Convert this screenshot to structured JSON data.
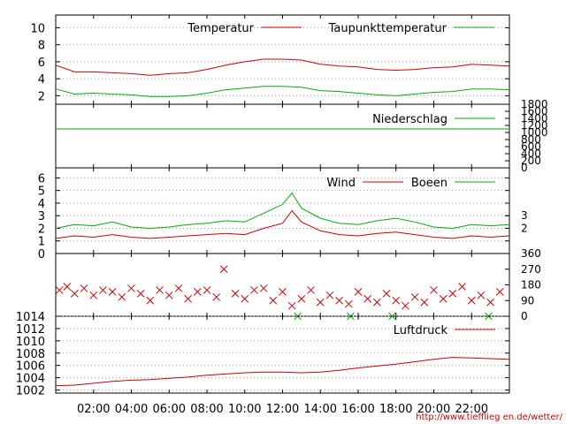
{
  "source_url": "http://www.tiefflieg en.de/wetter/",
  "colors": {
    "red": "#cc0000",
    "green": "#00b000",
    "grid": "#a0a0a0",
    "frame": "#000000"
  },
  "chart_data": {
    "x_ticks": [
      "02:00",
      "04:00",
      "06:00",
      "08:00",
      "10:00",
      "12:00",
      "14:00",
      "16:00",
      "18:00",
      "20:00",
      "22:00"
    ],
    "x_range_hours": [
      0,
      24
    ],
    "panels": [
      {
        "id": "temperature",
        "type": "line",
        "y_ticks": [
          "2",
          "4",
          "6",
          "8",
          "10"
        ],
        "ylim": [
          1,
          11.5
        ],
        "grid": true,
        "legend": [
          "Temperatur",
          "Taupunkttemperatur"
        ],
        "series": [
          {
            "name": "Temperatur",
            "color": "red",
            "x": [
              0,
              1,
              2,
              3,
              4,
              5,
              6,
              7,
              8,
              9,
              10,
              11,
              12,
              13,
              14,
              15,
              16,
              17,
              18,
              19,
              20,
              21,
              22,
              23,
              24
            ],
            "y": [
              5.6,
              4.8,
              4.8,
              4.7,
              4.6,
              4.4,
              4.6,
              4.7,
              5.1,
              5.6,
              6.0,
              6.3,
              6.3,
              6.2,
              5.7,
              5.5,
              5.4,
              5.1,
              5.0,
              5.1,
              5.3,
              5.4,
              5.7,
              5.6,
              5.5
            ]
          },
          {
            "name": "Taupunkttemperatur",
            "color": "green",
            "x": [
              0,
              1,
              2,
              3,
              4,
              5,
              6,
              7,
              8,
              9,
              10,
              11,
              12,
              13,
              14,
              15,
              16,
              17,
              18,
              19,
              20,
              21,
              22,
              23,
              24
            ],
            "y": [
              2.8,
              2.2,
              2.3,
              2.2,
              2.1,
              1.9,
              1.9,
              2.0,
              2.3,
              2.7,
              2.9,
              3.1,
              3.1,
              3.0,
              2.6,
              2.5,
              2.3,
              2.1,
              2.0,
              2.2,
              2.4,
              2.5,
              2.8,
              2.8,
              2.7
            ]
          }
        ]
      },
      {
        "id": "precipitation",
        "type": "line",
        "y_ticks_right": [
          "0",
          "200",
          "400",
          "600",
          "800",
          "1000",
          "1200",
          "1400",
          "1600",
          "1800"
        ],
        "ylim": [
          0,
          1800
        ],
        "grid": false,
        "legend": [
          "Niederschlag"
        ],
        "series": [
          {
            "name": "Niederschlag",
            "color": "green",
            "x": [
              0,
              24
            ],
            "y": [
              1100,
              1100
            ]
          }
        ]
      },
      {
        "id": "wind",
        "type": "line",
        "y_ticks": [
          "0",
          "1",
          "2",
          "3",
          "4",
          "5",
          "6"
        ],
        "y_ticks_right": [
          "2",
          "3"
        ],
        "ylim": [
          0,
          6.8
        ],
        "grid": true,
        "legend": [
          "Wind",
          "Boeen"
        ],
        "series": [
          {
            "name": "Wind",
            "color": "red",
            "x": [
              0,
              1,
              2,
              3,
              4,
              5,
              6,
              7,
              8,
              9,
              10,
              11,
              12,
              12.5,
              13,
              14,
              15,
              16,
              17,
              18,
              19,
              20,
              21,
              22,
              23,
              24
            ],
            "y": [
              1.2,
              1.4,
              1.3,
              1.5,
              1.3,
              1.2,
              1.3,
              1.4,
              1.5,
              1.6,
              1.5,
              2.0,
              2.4,
              3.4,
              2.5,
              1.8,
              1.5,
              1.4,
              1.6,
              1.7,
              1.5,
              1.3,
              1.2,
              1.4,
              1.3,
              1.4
            ]
          },
          {
            "name": "Boeen",
            "color": "green",
            "x": [
              0,
              1,
              2,
              3,
              4,
              5,
              6,
              7,
              8,
              9,
              10,
              11,
              12,
              12.5,
              13,
              14,
              15,
              16,
              17,
              18,
              19,
              20,
              21,
              22,
              23,
              24
            ],
            "y": [
              2.0,
              2.3,
              2.2,
              2.5,
              2.1,
              2.0,
              2.1,
              2.3,
              2.4,
              2.6,
              2.5,
              3.2,
              3.9,
              4.8,
              3.6,
              2.8,
              2.4,
              2.3,
              2.6,
              2.8,
              2.5,
              2.1,
              2.0,
              2.3,
              2.2,
              2.3
            ]
          }
        ]
      },
      {
        "id": "wind_direction",
        "type": "scatter",
        "y_ticks_right": [
          "0",
          "90",
          "180",
          "270",
          "360"
        ],
        "ylim": [
          0,
          360
        ],
        "grid": false,
        "marker": "x",
        "series": [
          {
            "name": "",
            "color": "red",
            "x": [
              0.2,
              0.6,
              1.0,
              1.5,
              2.0,
              2.5,
              3.0,
              3.5,
              4.0,
              4.5,
              5.0,
              5.5,
              6.0,
              6.5,
              7.0,
              7.5,
              8.0,
              8.5,
              8.9,
              9.5,
              10.0,
              10.5,
              11.0,
              11.5,
              12.0,
              12.5,
              13.0,
              13.5,
              14.0,
              14.5,
              15.0,
              15.5,
              16.0,
              16.5,
              17.0,
              17.5,
              18.0,
              18.5,
              19.0,
              19.5,
              20.0,
              20.5,
              21.0,
              21.5,
              22.0,
              22.5,
              23.0,
              23.5
            ],
            "y": [
              150,
              170,
              130,
              160,
              120,
              150,
              140,
              110,
              160,
              130,
              90,
              150,
              120,
              160,
              100,
              140,
              150,
              110,
              270,
              130,
              100,
              150,
              160,
              90,
              140,
              60,
              100,
              150,
              80,
              120,
              90,
              70,
              140,
              100,
              80,
              130,
              90,
              60,
              110,
              80,
              150,
              100,
              130,
              170,
              90,
              120,
              80,
              140
            ]
          },
          {
            "name": "",
            "color": "green",
            "x": [
              12.8,
              15.6,
              17.8,
              22.9
            ],
            "y": [
              0,
              0,
              0,
              0
            ]
          }
        ]
      },
      {
        "id": "pressure",
        "type": "line",
        "y_ticks": [
          "1002",
          "1004",
          "1006",
          "1008",
          "1010",
          "1012",
          "1014"
        ],
        "ylim": [
          1001.5,
          1014
        ],
        "grid": true,
        "legend": [
          "Luftdruck"
        ],
        "series": [
          {
            "name": "Luftdruck",
            "color": "red",
            "x": [
              0,
              1,
              2,
              3,
              4,
              5,
              6,
              7,
              8,
              9,
              10,
              11,
              12,
              13,
              14,
              15,
              16,
              17,
              18,
              19,
              20,
              21,
              22,
              23,
              24
            ],
            "y": [
              1002.7,
              1002.8,
              1003.1,
              1003.4,
              1003.6,
              1003.7,
              1003.9,
              1004.1,
              1004.4,
              1004.6,
              1004.8,
              1004.9,
              1004.9,
              1004.8,
              1004.9,
              1005.2,
              1005.6,
              1005.9,
              1006.2,
              1006.6,
              1007.0,
              1007.3,
              1007.2,
              1007.1,
              1007.0
            ]
          }
        ]
      }
    ]
  }
}
